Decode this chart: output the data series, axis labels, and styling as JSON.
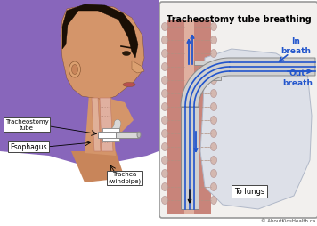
{
  "title": "Tracheostomy tube breathing",
  "copyright": "© AboutKidsHealth.ca",
  "labels": {
    "tracheostomy_tube": "Tracheostomy\ntube",
    "esophagus": "Esophagus",
    "trachea": "Trachea\n(windpipe)",
    "in_breath": "In\nbreath",
    "out_breath": "Out\nbreath",
    "to_lungs": "To lungs"
  },
  "colors": {
    "background": "#ffffff",
    "inset_bg": "#f0eeec",
    "inset_border": "#aaaaaa",
    "skin_dark": "#7a4a28",
    "skin_mid": "#c8855a",
    "skin_light": "#dba070",
    "skin_face": "#d4956a",
    "hair": "#1a0f05",
    "trachea_wall": "#c07868",
    "trachea_lumen": "#dba898",
    "esoph_color": "#e0b098",
    "tube_grey": "#c8c8c8",
    "tube_grey_dark": "#a0a0a0",
    "tube_blue1": "#1144aa",
    "tube_blue2": "#2255cc",
    "tube_blue3": "#4488ee",
    "blue_arrow": "#2255cc",
    "black_color": "#111111",
    "label_box": "#ffffff",
    "label_border": "#555555",
    "purple_shirt": "#8866bb",
    "lung_color": "#dde0e8",
    "lung_edge": "#b0b8c8",
    "ring_color": "#c0a8a0",
    "copyright_color": "#444444"
  },
  "figsize": [
    3.56,
    2.54
  ],
  "dpi": 100
}
